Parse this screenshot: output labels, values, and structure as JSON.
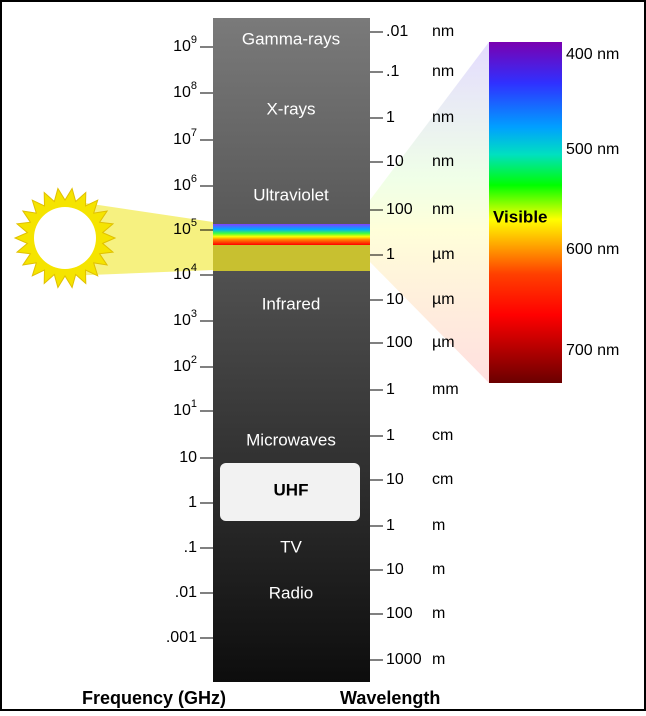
{
  "bands": [
    "Gamma-rays",
    "X-rays",
    "Ultraviolet",
    "Infrared",
    "Microwaves",
    "UHF",
    "TV",
    "Radio"
  ],
  "frequency_ticks": [
    {
      "base": "10",
      "exp": "9"
    },
    {
      "base": "10",
      "exp": "8"
    },
    {
      "base": "10",
      "exp": "7"
    },
    {
      "base": "10",
      "exp": "6"
    },
    {
      "base": "10",
      "exp": "5"
    },
    {
      "base": "10",
      "exp": "4"
    },
    {
      "base": "10",
      "exp": "3"
    },
    {
      "base": "10",
      "exp": "2"
    },
    {
      "base": "10",
      "exp": "1"
    },
    {
      "base": "10"
    },
    {
      "base": "1"
    },
    {
      "base": ".1"
    },
    {
      "base": ".01"
    },
    {
      "base": ".001"
    }
  ],
  "wavelength_ticks": [
    {
      "number": ".01",
      "unit": "nm"
    },
    {
      "number": ".1",
      "unit": "nm"
    },
    {
      "number": "1",
      "unit": "nm"
    },
    {
      "number": "10",
      "unit": "nm"
    },
    {
      "number": "100",
      "unit": "nm"
    },
    {
      "number": "1",
      "unit": "µm"
    },
    {
      "number": "10",
      "unit": "µm"
    },
    {
      "number": "100",
      "unit": "µm"
    },
    {
      "number": "1",
      "unit": "mm"
    },
    {
      "number": "1",
      "unit": "cm"
    },
    {
      "number": "10",
      "unit": "cm"
    },
    {
      "number": "1",
      "unit": "m"
    },
    {
      "number": "10",
      "unit": "m"
    },
    {
      "number": "100",
      "unit": "m"
    },
    {
      "number": "1000",
      "unit": "m"
    }
  ],
  "visible": {
    "label": "Visible",
    "ticks": [
      "400 nm",
      "500 nm",
      "600 nm",
      "700 nm"
    ]
  },
  "axis_labels": {
    "frequency": "Frequency (GHz)",
    "wavelength": "Wavelength"
  }
}
